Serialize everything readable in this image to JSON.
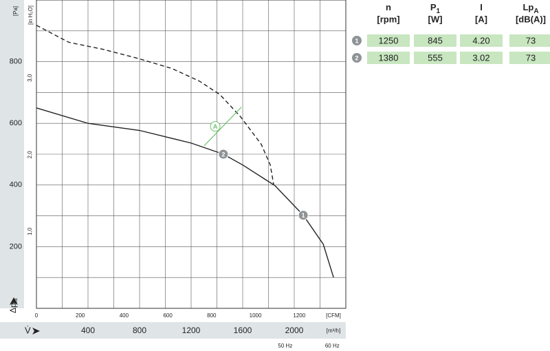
{
  "chart_data": {
    "type": "line",
    "y_unit": "[Pa]",
    "y2_unit": "[in H₂O]",
    "y_axis_label": "Δp",
    "y_axis_label_sub": "fa",
    "x_unit": "[m³/h]",
    "x_axis_label": "V̇",
    "x2_unit": "[CFM]",
    "xlim": [
      0,
      2400
    ],
    "xticks": [
      400,
      800,
      1200,
      1600,
      2000
    ],
    "x2lim": [
      0,
      1412.6
    ],
    "x2ticks": [
      0,
      200,
      400,
      600,
      800,
      1000,
      1200
    ],
    "ylim": [
      0,
      1000
    ],
    "yticks": [
      200,
      400,
      600,
      800
    ],
    "y2lim": [
      0,
      4.015
    ],
    "y2ticks": [
      {
        "value": 1,
        "label": "1,0"
      },
      {
        "value": 2,
        "label": "2,0"
      },
      {
        "value": 3,
        "label": "3,0"
      }
    ],
    "grid": true,
    "series": [
      {
        "name": "60 Hz",
        "color": "#222222",
        "dash": true,
        "x": [
          0,
          250,
          517,
          784,
          1050,
          1264,
          1424,
          1584,
          1744,
          1814,
          1840
        ],
        "values": [
          918,
          863,
          840,
          811,
          778,
          737,
          693,
          621,
          532,
          465,
          402
        ]
      },
      {
        "name": "50 Hz",
        "color": "#222222",
        "dash": false,
        "x": [
          0,
          400,
          800,
          1200,
          1450,
          1600,
          1850,
          2070,
          2225,
          2305
        ],
        "values": [
          650,
          600,
          577,
          536,
          500,
          465,
          398,
          302,
          208,
          100
        ]
      }
    ],
    "points": [
      {
        "label": "1",
        "x": 2070,
        "value": 302,
        "color": "#8e9396"
      },
      {
        "label": "2",
        "x": 1450,
        "value": 500,
        "color": "#8e9396"
      },
      {
        "label": "A",
        "x": 1387,
        "value": 590,
        "color": "#6fc46f"
      }
    ],
    "footnotes": [
      {
        "text": "50 Hz",
        "x": 1930
      },
      {
        "text": "60 Hz",
        "x": 2295
      }
    ]
  },
  "table": {
    "headers": [
      {
        "main": "n",
        "sub": null,
        "unit": "[rpm]"
      },
      {
        "main": "P",
        "sub": "1",
        "unit": "[W]"
      },
      {
        "main": "I",
        "sub": null,
        "unit": "[A]"
      },
      {
        "main": "Lp",
        "sub": "A",
        "unit": "[dB(A)]"
      }
    ],
    "rows": [
      {
        "marker": "1",
        "cells": [
          "1250",
          "845",
          "4.20",
          "73"
        ]
      },
      {
        "marker": "2",
        "cells": [
          "1380",
          "555",
          "3.02",
          "73"
        ]
      }
    ]
  }
}
